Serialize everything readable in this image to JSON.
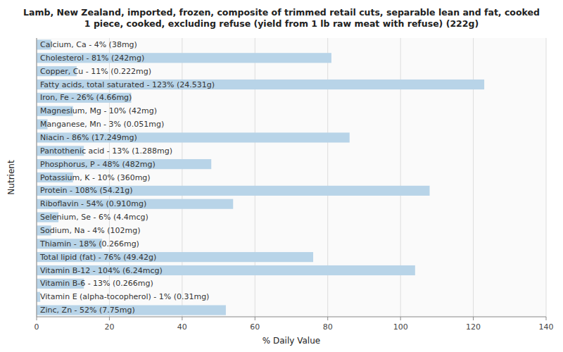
{
  "chart_data": {
    "type": "bar",
    "orientation": "horizontal",
    "title": "Lamb, New Zealand, imported, frozen, composite of trimmed retail cuts, separable lean and fat, cooked\n1 piece, cooked, excluding refuse (yield from 1 lb raw meat with refuse) (222g)",
    "x_label": "% Daily Value",
    "y_label": "Nutrient",
    "categories": [
      "Calcium, Ca - 4% (38mg)",
      "Cholesterol - 81% (242mg)",
      "Copper, Cu - 11% (0.222mg)",
      "Fatty acids, total saturated - 123% (24.531g)",
      "Iron, Fe - 26% (4.66mg)",
      "Magnesium, Mg - 10% (42mg)",
      "Manganese, Mn - 3% (0.051mg)",
      "Niacin - 86% (17.249mg)",
      "Pantothenic acid - 13% (1.288mg)",
      "Phosphorus, P - 48% (482mg)",
      "Potassium, K - 10% (360mg)",
      "Protein - 108% (54.21g)",
      "Riboflavin - 54% (0.910mg)",
      "Selenium, Se - 6% (4.4mcg)",
      "Sodium, Na - 4% (102mg)",
      "Thiamin - 18% (0.266mg)",
      "Total lipid (fat) - 76% (49.42g)",
      "Vitamin B-12 - 104% (6.24mcg)",
      "Vitamin B-6 - 13% (0.266mg)",
      "Vitamin E (alpha-tocopherol) - 1% (0.31mg)",
      "Zinc, Zn - 52% (7.75mg)"
    ],
    "values": [
      4,
      81,
      11,
      123,
      26,
      10,
      3,
      86,
      13,
      48,
      10,
      108,
      54,
      6,
      4,
      18,
      76,
      104,
      13,
      1,
      52
    ],
    "color": "#b8d4e8",
    "xlim": [
      0,
      140
    ],
    "xticks": [
      0,
      20,
      40,
      60,
      80,
      100,
      120,
      140
    ],
    "grid": true
  }
}
